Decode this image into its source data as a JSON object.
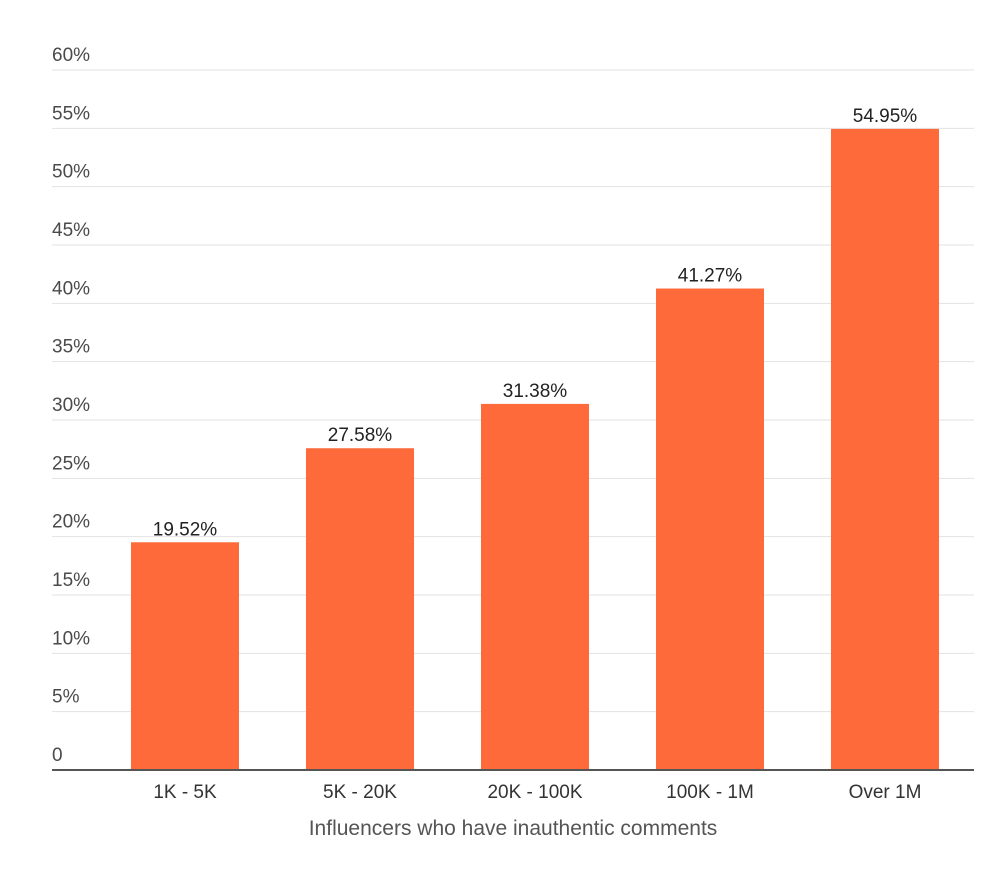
{
  "chart_data": {
    "type": "bar",
    "title": "",
    "xlabel": "Influencers who have inauthentic comments",
    "ylabel": "",
    "categories": [
      "1K - 5K",
      "5K - 20K",
      "20K - 100K",
      "100K - 1M",
      "Over 1M"
    ],
    "values": [
      19.52,
      27.58,
      31.38,
      41.27,
      54.95
    ],
    "data_labels": [
      "19.52%",
      "27.58%",
      "31.38%",
      "41.27%",
      "54.95%"
    ],
    "ylim": [
      0,
      60
    ],
    "yticks": [
      0,
      5,
      10,
      15,
      20,
      25,
      30,
      35,
      40,
      45,
      50,
      55,
      60
    ],
    "ytick_labels": [
      "0",
      "5%",
      "10%",
      "15%",
      "20%",
      "25%",
      "30%",
      "35%",
      "40%",
      "45%",
      "50%",
      "55%",
      "60%"
    ],
    "grid": true,
    "legend": "none",
    "bar_color": "#ff6a3a",
    "grid_color": "#e2e2e2",
    "axis_color": "#555555"
  }
}
